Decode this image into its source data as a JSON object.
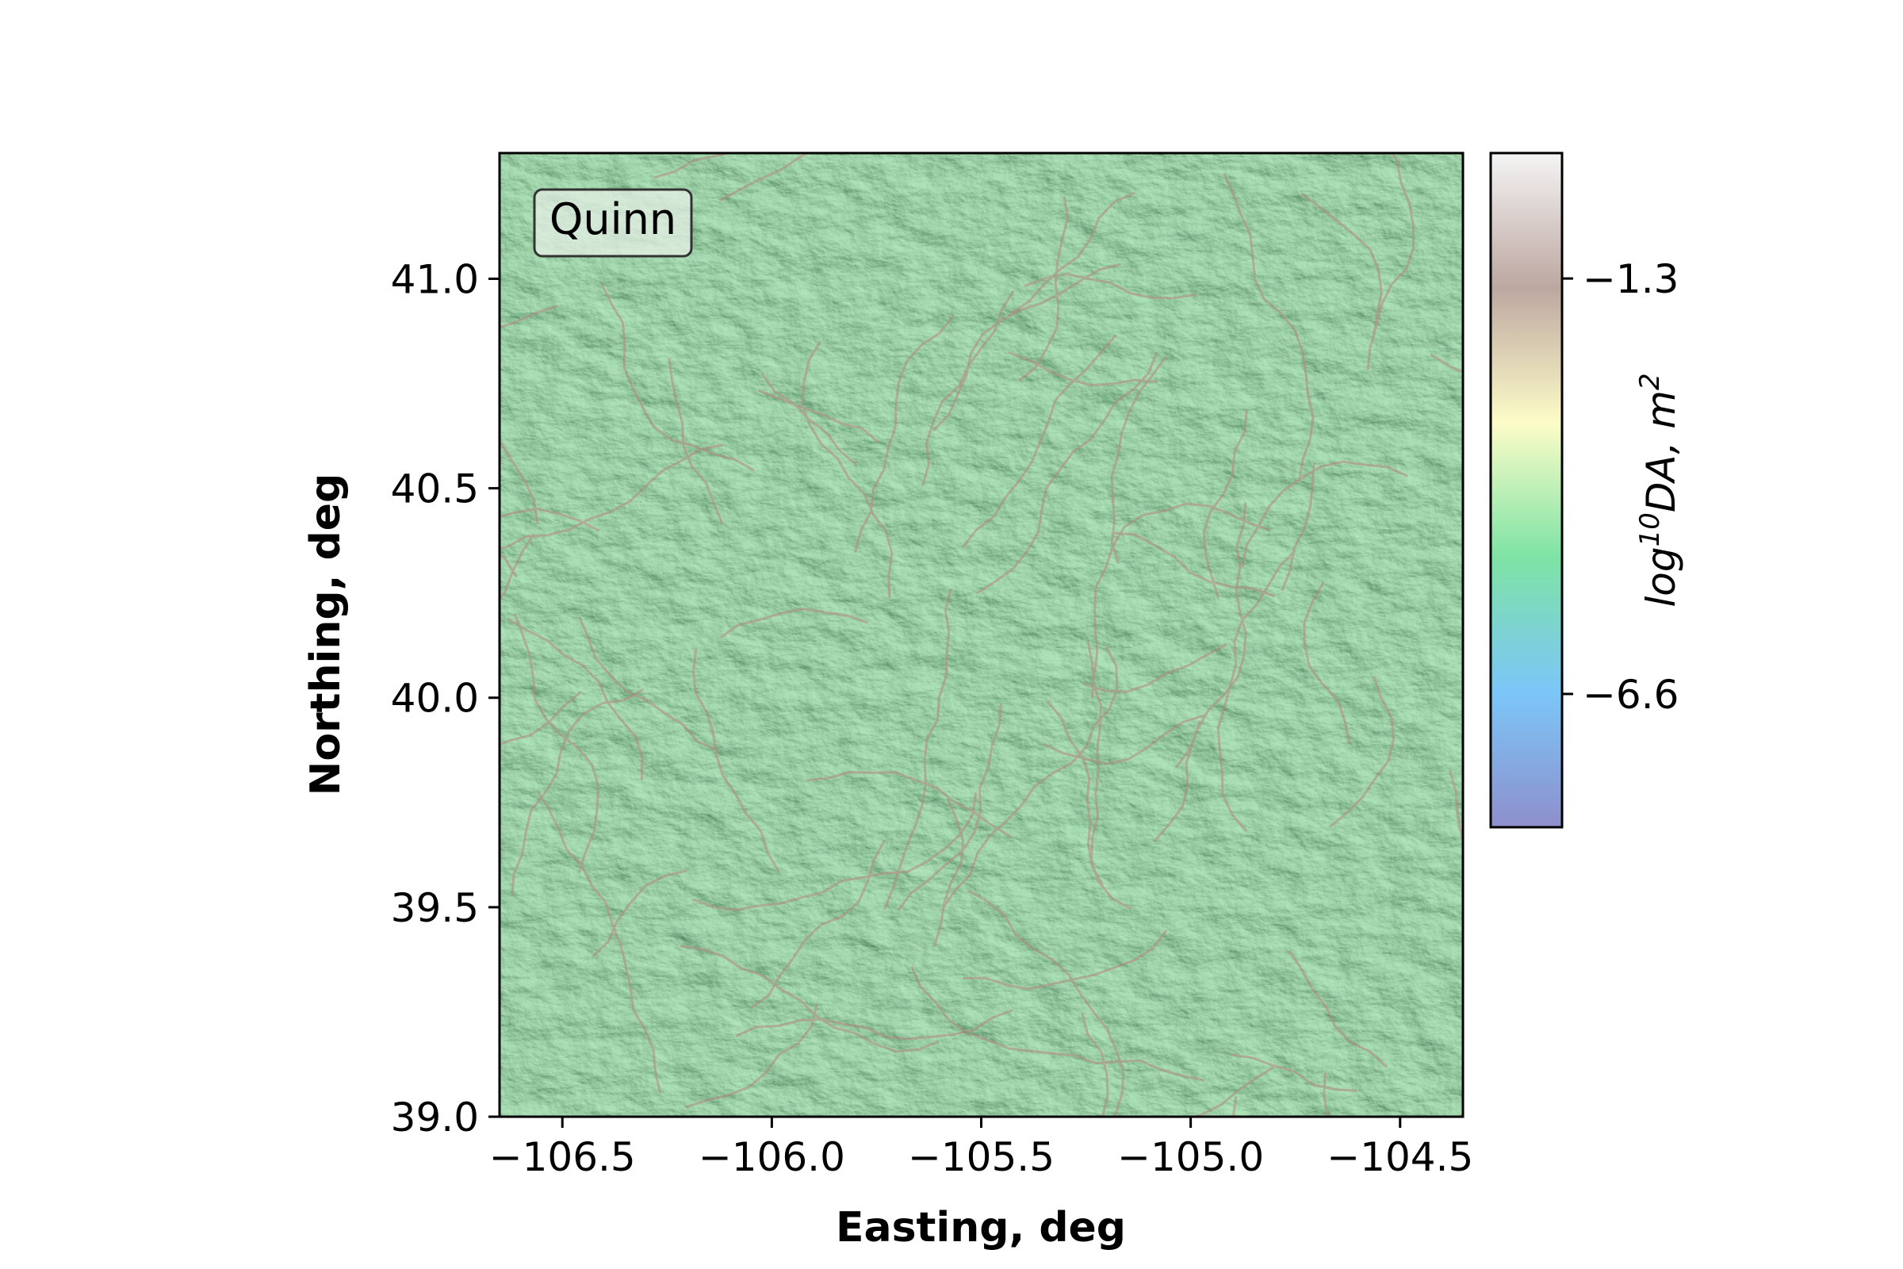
{
  "chart_data": {
    "type": "heatmap",
    "map_label": "Quinn",
    "xlabel": "Easting, deg",
    "ylabel": "Northing, deg",
    "xlim": [
      -106.65,
      -104.35
    ],
    "ylim": [
      39.0,
      41.3
    ],
    "x_ticks": [
      -106.5,
      -106.0,
      -105.5,
      -105.0,
      -104.5
    ],
    "x_tick_labels": [
      "−106.5",
      "−106.0",
      "−105.5",
      "−105.0",
      "−104.5"
    ],
    "y_ticks": [
      39.0,
      39.5,
      40.0,
      40.5,
      41.0
    ],
    "y_tick_labels": [
      "39.0",
      "39.5",
      "40.0",
      "40.5",
      "41.0"
    ],
    "colorbar": {
      "label_base": "log",
      "label_sup1": "10",
      "label_mid": "DA, m",
      "label_sup2": "2",
      "range": [
        -8.3,
        0.3
      ],
      "ticks": [
        -1.3,
        -6.6
      ],
      "tick_labels": [
        "−1.3",
        "−6.6"
      ],
      "colors": [
        "#8e8fcc",
        "#7cc6f8",
        "#7ee3a5",
        "#fdfcc8",
        "#bda7a1",
        "#f4f4f4"
      ]
    },
    "base_color": "#6fbf86",
    "channel_color": "#b28a7c"
  }
}
